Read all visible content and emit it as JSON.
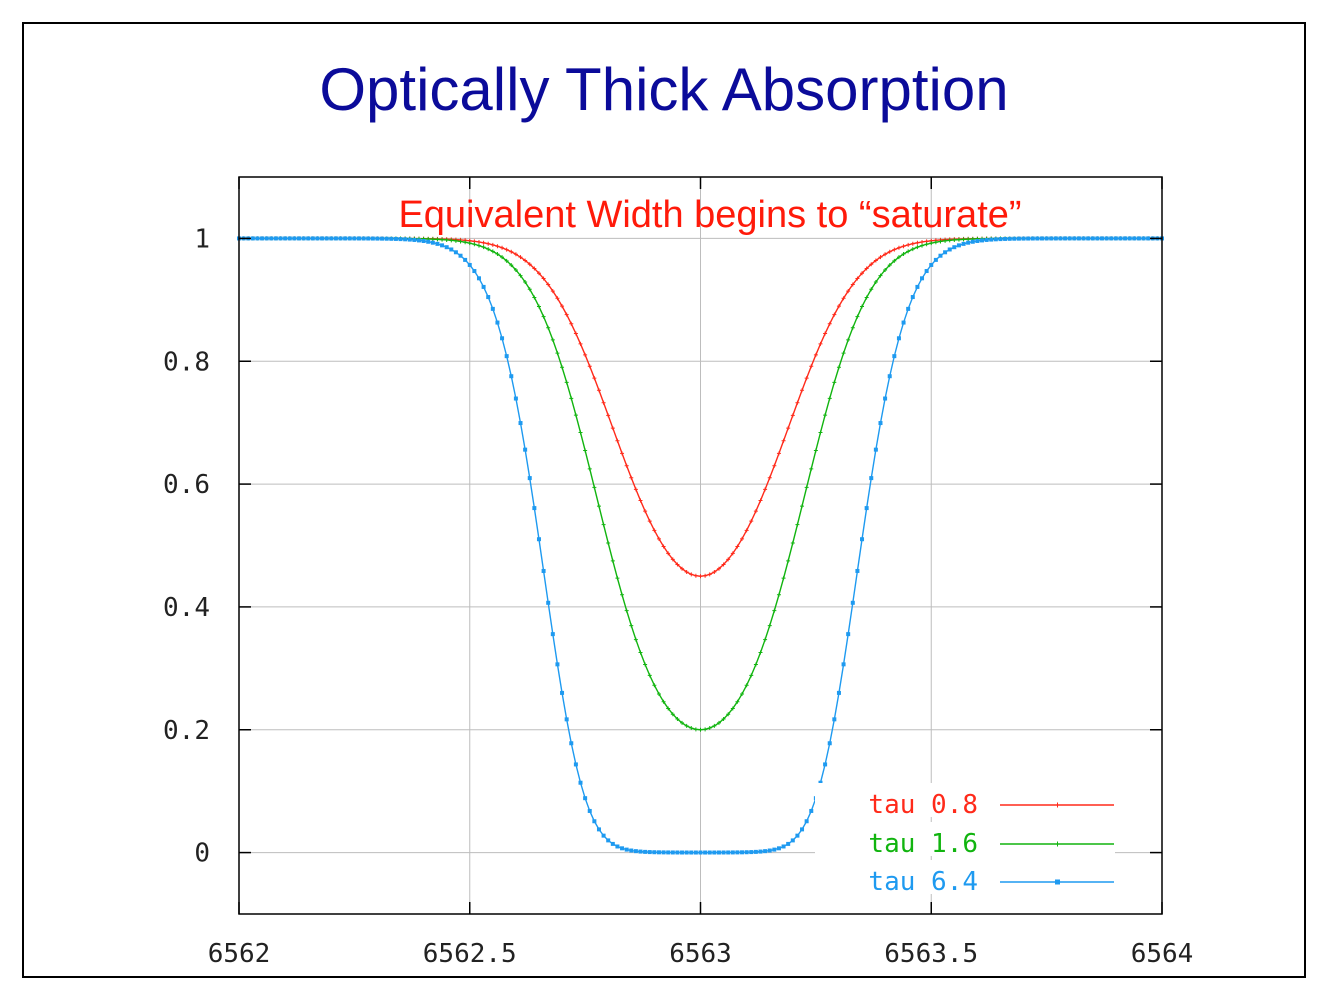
{
  "slide": {
    "title": "Optically Thick Absorption"
  },
  "chart_data": {
    "type": "line",
    "annotation": "Equivalent Width begins to “saturate”",
    "xlim": [
      6562,
      6564
    ],
    "ylim": [
      -0.1,
      1.1
    ],
    "x_ticks": [
      6562,
      6562.5,
      6563,
      6563.5,
      6564
    ],
    "x_tick_labels": [
      "6562",
      "6562.5",
      "6563",
      "6563.5",
      "6564"
    ],
    "y_ticks": [
      0,
      0.2,
      0.4,
      0.6,
      0.8,
      1
    ],
    "y_tick_labels": [
      "0",
      "0.2",
      "0.4",
      "0.6",
      "0.8",
      "1"
    ],
    "grid": true,
    "legend_position": "bottom-right",
    "center": 6563,
    "series": [
      {
        "name": "tau 0.8",
        "tau": 0.8,
        "color": "#ff2a1a",
        "marker": "plus",
        "min_value": 0.45
      },
      {
        "name": "tau 1.6",
        "tau": 1.6,
        "color": "#11b40f",
        "marker": "plus",
        "min_value": 0.2
      },
      {
        "name": "tau 6.4",
        "tau": 6.4,
        "color": "#1e9af0",
        "marker": "dot",
        "min_value": 0.0
      }
    ]
  }
}
